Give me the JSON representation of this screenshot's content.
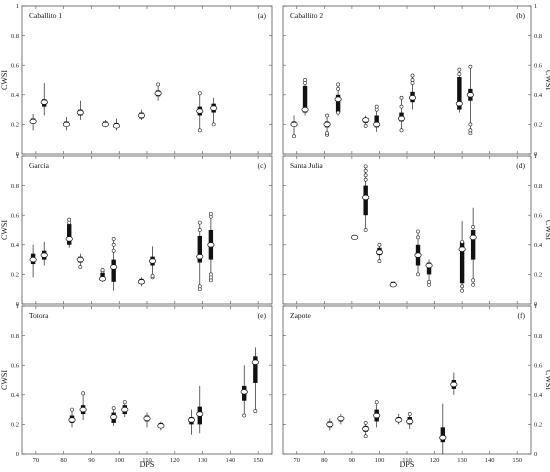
{
  "figure": {
    "xlabel": "DPS",
    "ylabel": "CWSI"
  },
  "chart_data": [
    {
      "type": "box",
      "title": "Caballito 1",
      "letter": "(a)",
      "xlabel": "",
      "ylabel": "CWSI",
      "xlim": [
        65,
        155
      ],
      "ylim": [
        0,
        1
      ],
      "xticks": [
        70,
        80,
        90,
        100,
        110,
        120,
        130,
        140,
        150
      ],
      "yticks": [
        0,
        0.2,
        0.4,
        0.6,
        0.8,
        1
      ],
      "show_xticklabels": false,
      "show_left_ylabels": true,
      "show_right_ylabels": false,
      "boxes": [
        {
          "x": 69,
          "q1": 0.21,
          "q3": 0.24,
          "median": 0.22,
          "lo": 0.16,
          "hi": 0.27,
          "outliers": []
        },
        {
          "x": 73,
          "q1": 0.32,
          "q3": 0.37,
          "median": 0.35,
          "lo": 0.26,
          "hi": 0.48,
          "outliers": []
        },
        {
          "x": 81,
          "q1": 0.19,
          "q3": 0.22,
          "median": 0.2,
          "lo": 0.16,
          "hi": 0.25,
          "outliers": []
        },
        {
          "x": 86,
          "q1": 0.26,
          "q3": 0.3,
          "median": 0.28,
          "lo": 0.23,
          "hi": 0.36,
          "outliers": []
        },
        {
          "x": 95,
          "q1": 0.19,
          "q3": 0.22,
          "median": 0.2,
          "lo": 0.18,
          "hi": 0.23,
          "outliers": []
        },
        {
          "x": 99,
          "q1": 0.18,
          "q3": 0.21,
          "median": 0.19,
          "lo": 0.16,
          "hi": 0.24,
          "outliers": []
        },
        {
          "x": 108,
          "q1": 0.24,
          "q3": 0.28,
          "median": 0.26,
          "lo": 0.23,
          "hi": 0.3,
          "outliers": []
        },
        {
          "x": 114,
          "q1": 0.39,
          "q3": 0.43,
          "median": 0.41,
          "lo": 0.36,
          "hi": 0.48,
          "outliers": [
            0.47
          ]
        },
        {
          "x": 129,
          "q1": 0.26,
          "q3": 0.32,
          "median": 0.29,
          "lo": 0.17,
          "hi": 0.4,
          "outliers": [
            0.16,
            0.41
          ]
        },
        {
          "x": 134,
          "q1": 0.28,
          "q3": 0.34,
          "median": 0.31,
          "lo": 0.2,
          "hi": 0.38,
          "outliers": [
            0.2
          ]
        }
      ]
    },
    {
      "type": "box",
      "title": "Caballito 2",
      "letter": "(b)",
      "xlabel": "",
      "ylabel": "CWSI",
      "xlim": [
        65,
        155
      ],
      "ylim": [
        0,
        1
      ],
      "xticks": [
        70,
        80,
        90,
        100,
        110,
        120,
        130,
        140,
        150
      ],
      "yticks": [
        0,
        0.2,
        0.4,
        0.6,
        0.8,
        1
      ],
      "show_xticklabels": false,
      "show_left_ylabels": false,
      "show_right_ylabels": true,
      "boxes": [
        {
          "x": 69,
          "q1": 0.19,
          "q3": 0.22,
          "median": 0.2,
          "lo": 0.12,
          "hi": 0.26,
          "outliers": [
            0.12
          ]
        },
        {
          "x": 73,
          "q1": 0.28,
          "q3": 0.46,
          "median": 0.3,
          "lo": 0.26,
          "hi": 0.5,
          "outliers": [
            0.48,
            0.5
          ]
        },
        {
          "x": 81,
          "q1": 0.18,
          "q3": 0.22,
          "median": 0.2,
          "lo": 0.13,
          "hi": 0.26,
          "outliers": [
            0.13,
            0.14,
            0.26
          ]
        },
        {
          "x": 85,
          "q1": 0.28,
          "q3": 0.4,
          "median": 0.37,
          "lo": 0.26,
          "hi": 0.47,
          "outliers": [
            0.44,
            0.47,
            0.28
          ]
        },
        {
          "x": 95,
          "q1": 0.21,
          "q3": 0.24,
          "median": 0.23,
          "lo": 0.19,
          "hi": 0.26,
          "outliers": [
            0.19
          ]
        },
        {
          "x": 99,
          "q1": 0.18,
          "q3": 0.26,
          "median": 0.2,
          "lo": 0.15,
          "hi": 0.32,
          "outliers": [
            0.3,
            0.32
          ]
        },
        {
          "x": 108,
          "q1": 0.22,
          "q3": 0.28,
          "median": 0.24,
          "lo": 0.16,
          "hi": 0.38,
          "outliers": [
            0.16,
            0.32,
            0.38
          ]
        },
        {
          "x": 112,
          "q1": 0.35,
          "q3": 0.42,
          "median": 0.38,
          "lo": 0.3,
          "hi": 0.53,
          "outliers": [
            0.48,
            0.5,
            0.53
          ]
        },
        {
          "x": 129,
          "q1": 0.3,
          "q3": 0.52,
          "median": 0.34,
          "lo": 0.28,
          "hi": 0.57,
          "outliers": [
            0.54,
            0.57
          ]
        },
        {
          "x": 133,
          "q1": 0.36,
          "q3": 0.44,
          "median": 0.4,
          "lo": 0.14,
          "hi": 0.59,
          "outliers": [
            0.14,
            0.16,
            0.2,
            0.59
          ]
        }
      ]
    },
    {
      "type": "box",
      "title": "Garcia",
      "letter": "(c)",
      "xlabel": "",
      "ylabel": "CWSI",
      "xlim": [
        65,
        155
      ],
      "ylim": [
        0,
        1
      ],
      "xticks": [
        70,
        80,
        90,
        100,
        110,
        120,
        130,
        140,
        150
      ],
      "yticks": [
        0,
        0.2,
        0.4,
        0.6,
        0.8,
        1
      ],
      "show_xticklabels": false,
      "show_left_ylabels": true,
      "show_right_ylabels": false,
      "boxes": [
        {
          "x": 69,
          "q1": 0.27,
          "q3": 0.34,
          "median": 0.3,
          "lo": 0.18,
          "hi": 0.4,
          "outliers": []
        },
        {
          "x": 73,
          "q1": 0.3,
          "q3": 0.36,
          "median": 0.33,
          "lo": 0.26,
          "hi": 0.42,
          "outliers": []
        },
        {
          "x": 82,
          "q1": 0.4,
          "q3": 0.54,
          "median": 0.44,
          "lo": 0.38,
          "hi": 0.57,
          "outliers": [
            0.55,
            0.57
          ]
        },
        {
          "x": 86,
          "q1": 0.28,
          "q3": 0.32,
          "median": 0.3,
          "lo": 0.25,
          "hi": 0.34,
          "outliers": [
            0.25
          ]
        },
        {
          "x": 94,
          "q1": 0.16,
          "q3": 0.21,
          "median": 0.17,
          "lo": 0.15,
          "hi": 0.23,
          "outliers": [
            0.22,
            0.23
          ]
        },
        {
          "x": 98,
          "q1": 0.15,
          "q3": 0.3,
          "median": 0.25,
          "lo": 0.09,
          "hi": 0.44,
          "outliers": [
            0.36,
            0.4,
            0.44
          ]
        },
        {
          "x": 108,
          "q1": 0.14,
          "q3": 0.17,
          "median": 0.15,
          "lo": 0.12,
          "hi": 0.18,
          "outliers": []
        },
        {
          "x": 112,
          "q1": 0.26,
          "q3": 0.32,
          "median": 0.29,
          "lo": 0.18,
          "hi": 0.39,
          "outliers": [
            0.18,
            0.19
          ]
        },
        {
          "x": 129,
          "q1": 0.28,
          "q3": 0.46,
          "median": 0.32,
          "lo": 0.1,
          "hi": 0.55,
          "outliers": [
            0.1,
            0.12,
            0.5,
            0.55
          ]
        },
        {
          "x": 133,
          "q1": 0.3,
          "q3": 0.5,
          "median": 0.4,
          "lo": 0.16,
          "hi": 0.61,
          "outliers": [
            0.16,
            0.18,
            0.2,
            0.59,
            0.61
          ]
        }
      ]
    },
    {
      "type": "box",
      "title": "Santa Julia",
      "letter": "(d)",
      "xlabel": "",
      "ylabel": "CWSI",
      "xlim": [
        65,
        155
      ],
      "ylim": [
        0,
        1
      ],
      "xticks": [
        70,
        80,
        90,
        100,
        110,
        120,
        130,
        140,
        150
      ],
      "yticks": [
        0,
        0.2,
        0.4,
        0.6,
        0.8,
        1
      ],
      "show_xticklabels": false,
      "show_left_ylabels": false,
      "show_right_ylabels": true,
      "boxes": [
        {
          "x": 91,
          "q1": 0.45,
          "q3": 0.45,
          "median": 0.45,
          "lo": 0.45,
          "hi": 0.45,
          "outliers": [
            0.45
          ]
        },
        {
          "x": 95,
          "q1": 0.6,
          "q3": 0.8,
          "median": 0.72,
          "lo": 0.5,
          "hi": 0.93,
          "outliers": [
            0.5,
            0.84,
            0.87,
            0.9,
            0.93
          ]
        },
        {
          "x": 100,
          "q1": 0.33,
          "q3": 0.38,
          "median": 0.35,
          "lo": 0.29,
          "hi": 0.4,
          "outliers": [
            0.29,
            0.4
          ]
        },
        {
          "x": 105,
          "q1": 0.12,
          "q3": 0.15,
          "median": 0.13,
          "lo": 0.12,
          "hi": 0.15,
          "outliers": []
        },
        {
          "x": 114,
          "q1": 0.26,
          "q3": 0.4,
          "median": 0.33,
          "lo": 0.2,
          "hi": 0.49,
          "outliers": [
            0.45,
            0.49,
            0.2
          ]
        },
        {
          "x": 118,
          "q1": 0.2,
          "q3": 0.28,
          "median": 0.26,
          "lo": 0.13,
          "hi": 0.3,
          "outliers": [
            0.13,
            0.15
          ]
        },
        {
          "x": 130,
          "q1": 0.14,
          "q3": 0.42,
          "median": 0.37,
          "lo": 0.09,
          "hi": 0.56,
          "outliers": [
            0.09,
            0.12,
            0.42
          ]
        },
        {
          "x": 134,
          "q1": 0.3,
          "q3": 0.5,
          "median": 0.45,
          "lo": 0.13,
          "hi": 0.65,
          "outliers": [
            0.13,
            0.16,
            0.52
          ]
        }
      ]
    },
    {
      "type": "box",
      "title": "Totora",
      "letter": "(e)",
      "xlabel": "",
      "ylabel": "CWSI",
      "xlim": [
        65,
        155
      ],
      "ylim": [
        0,
        1
      ],
      "xticks": [
        70,
        80,
        90,
        100,
        110,
        120,
        130,
        140,
        150
      ],
      "yticks": [
        0,
        0.2,
        0.4,
        0.6,
        0.8,
        1
      ],
      "show_xticklabels": true,
      "show_left_ylabels": true,
      "show_right_ylabels": false,
      "boxes": [
        {
          "x": 83,
          "q1": 0.21,
          "q3": 0.26,
          "median": 0.23,
          "lo": 0.18,
          "hi": 0.3,
          "outliers": [
            0.3
          ]
        },
        {
          "x": 87,
          "q1": 0.27,
          "q3": 0.33,
          "median": 0.3,
          "lo": 0.23,
          "hi": 0.41,
          "outliers": [
            0.41
          ]
        },
        {
          "x": 98,
          "q1": 0.21,
          "q3": 0.28,
          "median": 0.25,
          "lo": 0.19,
          "hi": 0.31,
          "outliers": [
            0.31
          ]
        },
        {
          "x": 102,
          "q1": 0.27,
          "q3": 0.33,
          "median": 0.3,
          "lo": 0.25,
          "hi": 0.35,
          "outliers": [
            0.35
          ]
        },
        {
          "x": 110,
          "q1": 0.22,
          "q3": 0.26,
          "median": 0.24,
          "lo": 0.18,
          "hi": 0.28,
          "outliers": []
        },
        {
          "x": 115,
          "q1": 0.18,
          "q3": 0.21,
          "median": 0.19,
          "lo": 0.16,
          "hi": 0.22,
          "outliers": []
        },
        {
          "x": 126,
          "q1": 0.2,
          "q3": 0.25,
          "median": 0.23,
          "lo": 0.13,
          "hi": 0.3,
          "outliers": []
        },
        {
          "x": 129,
          "q1": 0.2,
          "q3": 0.32,
          "median": 0.27,
          "lo": 0.14,
          "hi": 0.46,
          "outliers": []
        },
        {
          "x": 145,
          "q1": 0.36,
          "q3": 0.46,
          "median": 0.42,
          "lo": 0.26,
          "hi": 0.6,
          "outliers": [
            0.26
          ]
        },
        {
          "x": 149,
          "q1": 0.48,
          "q3": 0.66,
          "median": 0.62,
          "lo": 0.29,
          "hi": 0.72,
          "outliers": [
            0.29
          ]
        }
      ]
    },
    {
      "type": "box",
      "title": "Zapote",
      "letter": "(f)",
      "xlabel": "",
      "ylabel": "CWSI",
      "xlim": [
        65,
        155
      ],
      "ylim": [
        0,
        1
      ],
      "xticks": [
        70,
        80,
        90,
        100,
        110,
        120,
        130,
        140,
        150
      ],
      "yticks": [
        0,
        0.2,
        0.4,
        0.6,
        0.8,
        1
      ],
      "show_xticklabels": true,
      "show_left_ylabels": false,
      "show_right_ylabels": true,
      "boxes": [
        {
          "x": 82,
          "q1": 0.18,
          "q3": 0.22,
          "median": 0.2,
          "lo": 0.16,
          "hi": 0.24,
          "outliers": []
        },
        {
          "x": 86,
          "q1": 0.22,
          "q3": 0.25,
          "median": 0.24,
          "lo": 0.2,
          "hi": 0.27,
          "outliers": []
        },
        {
          "x": 95,
          "q1": 0.15,
          "q3": 0.19,
          "median": 0.17,
          "lo": 0.12,
          "hi": 0.21,
          "outliers": [
            0.12,
            0.21
          ]
        },
        {
          "x": 99,
          "q1": 0.22,
          "q3": 0.3,
          "median": 0.26,
          "lo": 0.18,
          "hi": 0.35,
          "outliers": [
            0.35
          ]
        },
        {
          "x": 107,
          "q1": 0.22,
          "q3": 0.25,
          "median": 0.23,
          "lo": 0.2,
          "hi": 0.27,
          "outliers": []
        },
        {
          "x": 111,
          "q1": 0.2,
          "q3": 0.25,
          "median": 0.22,
          "lo": 0.17,
          "hi": 0.28,
          "outliers": [
            0.27
          ]
        },
        {
          "x": 123,
          "q1": 0.08,
          "q3": 0.18,
          "median": 0.11,
          "lo": 0.0,
          "hi": 0.34,
          "outliers": []
        },
        {
          "x": 127,
          "q1": 0.44,
          "q3": 0.5,
          "median": 0.47,
          "lo": 0.4,
          "hi": 0.55,
          "outliers": []
        }
      ]
    }
  ]
}
